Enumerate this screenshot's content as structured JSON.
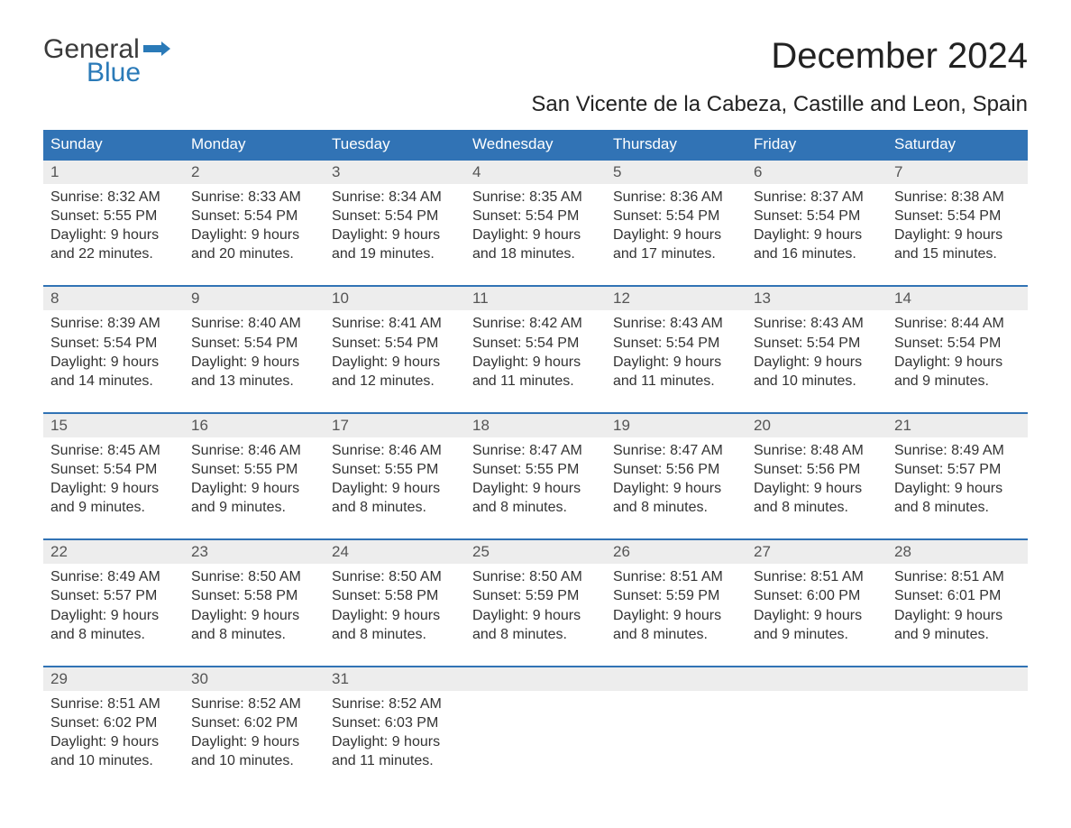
{
  "logo": {
    "word1": "General",
    "word2": "Blue",
    "flag_color": "#2a7ab8",
    "word1_color": "#3a3a3a"
  },
  "title": "December 2024",
  "subtitle": "San Vicente de la Cabeza, Castille and Leon, Spain",
  "colors": {
    "header_bg": "#3173b5",
    "header_text": "#ffffff",
    "week_border": "#3173b5",
    "daynum_bg": "#ededed",
    "daynum_text": "#555555",
    "body_text": "#333333",
    "background": "#ffffff"
  },
  "typography": {
    "title_fontsize": 40,
    "subtitle_fontsize": 24,
    "header_fontsize": 17,
    "daynum_fontsize": 17,
    "body_fontsize": 16,
    "font_family": "Arial"
  },
  "day_labels": [
    "Sunday",
    "Monday",
    "Tuesday",
    "Wednesday",
    "Thursday",
    "Friday",
    "Saturday"
  ],
  "labels": {
    "sunrise": "Sunrise:",
    "sunset": "Sunset:",
    "daylight": "Daylight:"
  },
  "weeks": [
    [
      {
        "n": "1",
        "sunrise": "8:32 AM",
        "sunset": "5:55 PM",
        "daylight": "9 hours and 22 minutes."
      },
      {
        "n": "2",
        "sunrise": "8:33 AM",
        "sunset": "5:54 PM",
        "daylight": "9 hours and 20 minutes."
      },
      {
        "n": "3",
        "sunrise": "8:34 AM",
        "sunset": "5:54 PM",
        "daylight": "9 hours and 19 minutes."
      },
      {
        "n": "4",
        "sunrise": "8:35 AM",
        "sunset": "5:54 PM",
        "daylight": "9 hours and 18 minutes."
      },
      {
        "n": "5",
        "sunrise": "8:36 AM",
        "sunset": "5:54 PM",
        "daylight": "9 hours and 17 minutes."
      },
      {
        "n": "6",
        "sunrise": "8:37 AM",
        "sunset": "5:54 PM",
        "daylight": "9 hours and 16 minutes."
      },
      {
        "n": "7",
        "sunrise": "8:38 AM",
        "sunset": "5:54 PM",
        "daylight": "9 hours and 15 minutes."
      }
    ],
    [
      {
        "n": "8",
        "sunrise": "8:39 AM",
        "sunset": "5:54 PM",
        "daylight": "9 hours and 14 minutes."
      },
      {
        "n": "9",
        "sunrise": "8:40 AM",
        "sunset": "5:54 PM",
        "daylight": "9 hours and 13 minutes."
      },
      {
        "n": "10",
        "sunrise": "8:41 AM",
        "sunset": "5:54 PM",
        "daylight": "9 hours and 12 minutes."
      },
      {
        "n": "11",
        "sunrise": "8:42 AM",
        "sunset": "5:54 PM",
        "daylight": "9 hours and 11 minutes."
      },
      {
        "n": "12",
        "sunrise": "8:43 AM",
        "sunset": "5:54 PM",
        "daylight": "9 hours and 11 minutes."
      },
      {
        "n": "13",
        "sunrise": "8:43 AM",
        "sunset": "5:54 PM",
        "daylight": "9 hours and 10 minutes."
      },
      {
        "n": "14",
        "sunrise": "8:44 AM",
        "sunset": "5:54 PM",
        "daylight": "9 hours and 9 minutes."
      }
    ],
    [
      {
        "n": "15",
        "sunrise": "8:45 AM",
        "sunset": "5:54 PM",
        "daylight": "9 hours and 9 minutes."
      },
      {
        "n": "16",
        "sunrise": "8:46 AM",
        "sunset": "5:55 PM",
        "daylight": "9 hours and 9 minutes."
      },
      {
        "n": "17",
        "sunrise": "8:46 AM",
        "sunset": "5:55 PM",
        "daylight": "9 hours and 8 minutes."
      },
      {
        "n": "18",
        "sunrise": "8:47 AM",
        "sunset": "5:55 PM",
        "daylight": "9 hours and 8 minutes."
      },
      {
        "n": "19",
        "sunrise": "8:47 AM",
        "sunset": "5:56 PM",
        "daylight": "9 hours and 8 minutes."
      },
      {
        "n": "20",
        "sunrise": "8:48 AM",
        "sunset": "5:56 PM",
        "daylight": "9 hours and 8 minutes."
      },
      {
        "n": "21",
        "sunrise": "8:49 AM",
        "sunset": "5:57 PM",
        "daylight": "9 hours and 8 minutes."
      }
    ],
    [
      {
        "n": "22",
        "sunrise": "8:49 AM",
        "sunset": "5:57 PM",
        "daylight": "9 hours and 8 minutes."
      },
      {
        "n": "23",
        "sunrise": "8:50 AM",
        "sunset": "5:58 PM",
        "daylight": "9 hours and 8 minutes."
      },
      {
        "n": "24",
        "sunrise": "8:50 AM",
        "sunset": "5:58 PM",
        "daylight": "9 hours and 8 minutes."
      },
      {
        "n": "25",
        "sunrise": "8:50 AM",
        "sunset": "5:59 PM",
        "daylight": "9 hours and 8 minutes."
      },
      {
        "n": "26",
        "sunrise": "8:51 AM",
        "sunset": "5:59 PM",
        "daylight": "9 hours and 8 minutes."
      },
      {
        "n": "27",
        "sunrise": "8:51 AM",
        "sunset": "6:00 PM",
        "daylight": "9 hours and 9 minutes."
      },
      {
        "n": "28",
        "sunrise": "8:51 AM",
        "sunset": "6:01 PM",
        "daylight": "9 hours and 9 minutes."
      }
    ],
    [
      {
        "n": "29",
        "sunrise": "8:51 AM",
        "sunset": "6:02 PM",
        "daylight": "9 hours and 10 minutes."
      },
      {
        "n": "30",
        "sunrise": "8:52 AM",
        "sunset": "6:02 PM",
        "daylight": "9 hours and 10 minutes."
      },
      {
        "n": "31",
        "sunrise": "8:52 AM",
        "sunset": "6:03 PM",
        "daylight": "9 hours and 11 minutes."
      },
      null,
      null,
      null,
      null
    ]
  ]
}
